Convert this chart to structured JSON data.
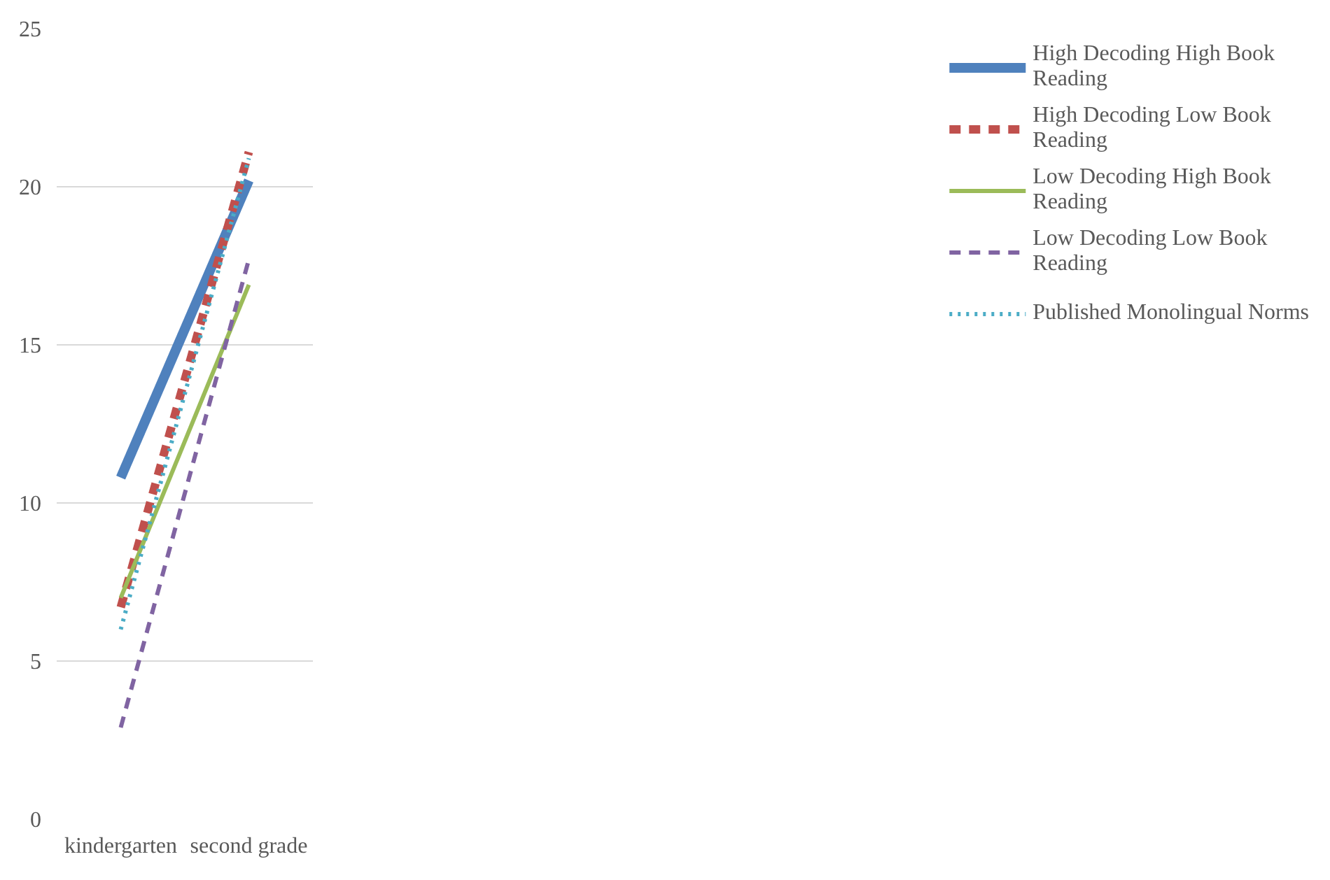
{
  "chart_data": {
    "type": "line",
    "categories": [
      "kindergarten",
      "second grade"
    ],
    "ylim": [
      0,
      25
    ],
    "yticks": [
      0,
      5,
      10,
      15,
      20,
      25
    ],
    "grid": "y",
    "legend": "right",
    "marker": "none",
    "series": [
      {
        "name": "High Decoding High Book Reading",
        "color": "#4f81bd",
        "values": [
          10.8,
          20.2
        ],
        "line_style": "solid"
      },
      {
        "name": "High Decoding Low Book Reading",
        "color": "#c0504d",
        "values": [
          6.7,
          21.1
        ],
        "line_style": "dashed"
      },
      {
        "name": "Low Decoding High Book Reading",
        "color": "#9bbb59",
        "values": [
          7.0,
          16.9
        ],
        "line_style": "solid"
      },
      {
        "name": "Low Decoding Low Book Reading",
        "color": "#8064a2",
        "values": [
          2.9,
          17.7
        ],
        "line_style": "dashed"
      },
      {
        "name": "Published Monolingual Norms",
        "color": "#4bacc6",
        "values": [
          6.0,
          20.9
        ],
        "line_style": "dotted"
      }
    ]
  }
}
